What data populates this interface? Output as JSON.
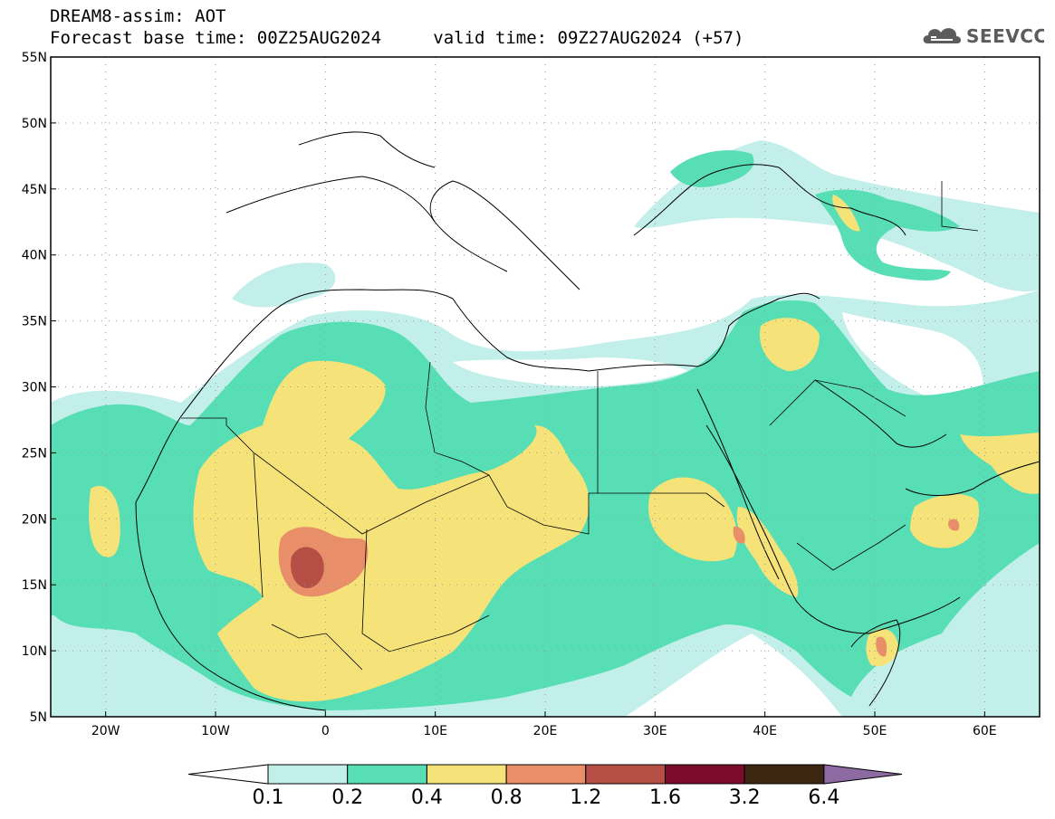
{
  "header": {
    "title": "DREAM8-assim: AOT",
    "base_time_label": "Forecast base time: 00Z25AUG2024",
    "valid_time_label": "valid time: 09Z27AUG2024 (+57)"
  },
  "logo": {
    "text": "SEEVCCC",
    "icon": "cloud-icon"
  },
  "map": {
    "variable": "AOT",
    "region": "North Africa, Middle East and Europe",
    "lon_range": [
      -25,
      65
    ],
    "lat_range": [
      5,
      55
    ],
    "lat_ticks": [
      {
        "value": 55,
        "label": "55N"
      },
      {
        "value": 50,
        "label": "50N"
      },
      {
        "value": 45,
        "label": "45N"
      },
      {
        "value": 40,
        "label": "40N"
      },
      {
        "value": 35,
        "label": "35N"
      },
      {
        "value": 30,
        "label": "30N"
      },
      {
        "value": 25,
        "label": "25N"
      },
      {
        "value": 20,
        "label": "20N"
      },
      {
        "value": 15,
        "label": "15N"
      },
      {
        "value": 10,
        "label": "10N"
      },
      {
        "value": 5,
        "label": "5N"
      }
    ],
    "lon_ticks": [
      {
        "value": -20,
        "label": "20W"
      },
      {
        "value": -10,
        "label": "10W"
      },
      {
        "value": 0,
        "label": "0"
      },
      {
        "value": 10,
        "label": "10E"
      },
      {
        "value": 20,
        "label": "20E"
      },
      {
        "value": 30,
        "label": "30E"
      },
      {
        "value": 40,
        "label": "40E"
      },
      {
        "value": 50,
        "label": "50E"
      },
      {
        "value": 60,
        "label": "60E"
      }
    ],
    "gridlines": "dotted"
  },
  "colorbar": {
    "levels": [
      "0.1",
      "0.2",
      "0.4",
      "0.8",
      "1.2",
      "1.6",
      "3.2",
      "6.4"
    ],
    "colors": [
      "#ffffff",
      "#c2efe9",
      "#58deb4",
      "#f5e37a",
      "#e88e68",
      "#b54f45",
      "#7c0a2a",
      "#3d2713",
      "#8e6aa3"
    ]
  }
}
